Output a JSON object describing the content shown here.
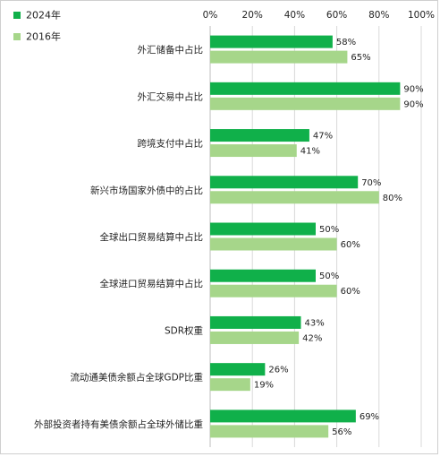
{
  "chart_data": {
    "type": "bar",
    "orientation": "horizontal",
    "title": "",
    "xlabel": "",
    "ylabel": "",
    "xlim": [
      0,
      100
    ],
    "x_ticks": [
      "0%",
      "20%",
      "40%",
      "60%",
      "80%",
      "100%"
    ],
    "x_tick_values": [
      0,
      20,
      40,
      60,
      80,
      100
    ],
    "grid": true,
    "legend_position": "top-left",
    "categories": [
      "外汇储备中占比",
      "外汇交易中占比",
      "跨境支付中占比",
      "新兴市场国家外债中的占比",
      "全球出口贸易结算中占比",
      "全球进口贸易结算中占比",
      "SDR权重",
      "流动通美债余额占全球GDP比重",
      "外部投资者持有美债余额占全球外储比重"
    ],
    "series": [
      {
        "name": "2024年",
        "color": "#10b04a",
        "values": [
          58,
          90,
          47,
          70,
          50,
          50,
          43,
          26,
          69
        ],
        "labels": [
          "58%",
          "90%",
          "47%",
          "70%",
          "50%",
          "50%",
          "43%",
          "26%",
          "69%"
        ]
      },
      {
        "name": "2016年",
        "color": "#a6d68a",
        "values": [
          65,
          90,
          41,
          80,
          60,
          60,
          42,
          19,
          56
        ],
        "labels": [
          "65%",
          "90%",
          "41%",
          "80%",
          "60%",
          "60%",
          "42%",
          "19%",
          "56%"
        ]
      }
    ]
  }
}
